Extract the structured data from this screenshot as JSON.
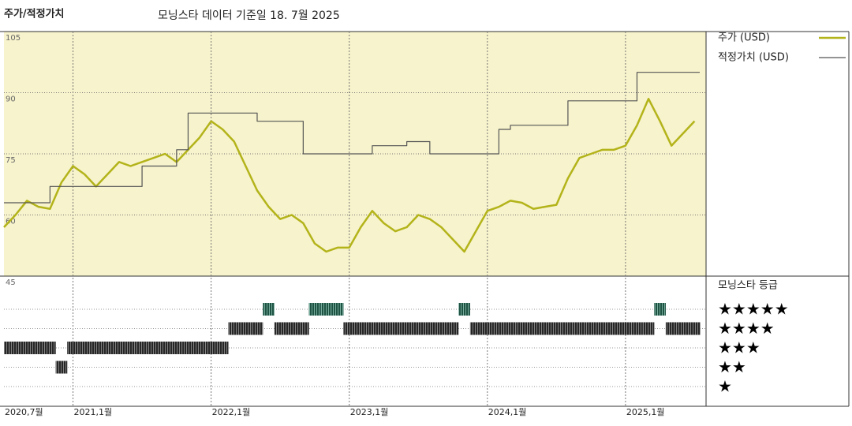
{
  "chart_data": {
    "type": "line",
    "title": "주가/적정가치",
    "subtitle": "모닝스타 데이터 기준일 18. 7월 2025",
    "x": [
      "2020-07",
      "2020-08",
      "2020-09",
      "2020-10",
      "2020-11",
      "2020-12",
      "2021-01",
      "2021-02",
      "2021-03",
      "2021-04",
      "2021-05",
      "2021-06",
      "2021-07",
      "2021-08",
      "2021-09",
      "2021-10",
      "2021-11",
      "2021-12",
      "2022-01",
      "2022-02",
      "2022-03",
      "2022-04",
      "2022-05",
      "2022-06",
      "2022-07",
      "2022-08",
      "2022-09",
      "2022-10",
      "2022-11",
      "2022-12",
      "2023-01",
      "2023-02",
      "2023-03",
      "2023-04",
      "2023-05",
      "2023-06",
      "2023-07",
      "2023-08",
      "2023-09",
      "2023-10",
      "2023-11",
      "2023-12",
      "2024-01",
      "2024-02",
      "2024-03",
      "2024-04",
      "2024-05",
      "2024-06",
      "2024-07",
      "2024-08",
      "2024-09",
      "2024-10",
      "2024-11",
      "2024-12",
      "2025-01",
      "2025-02",
      "2025-03",
      "2025-04",
      "2025-05",
      "2025-06",
      "2025-07"
    ],
    "xlim": [
      "2020-07",
      "2025-08"
    ],
    "xticks": [
      {
        "value": "2020-07",
        "label": "2020,7월"
      },
      {
        "value": "2021-01",
        "label": "2021,1월"
      },
      {
        "value": "2022-01",
        "label": "2022,1월"
      },
      {
        "value": "2023-01",
        "label": "2023,1월"
      },
      {
        "value": "2024-01",
        "label": "2024,1월"
      },
      {
        "value": "2025-01",
        "label": "2025,1월"
      }
    ],
    "ylim": [
      45,
      105
    ],
    "yticks": [
      45,
      60,
      75,
      90,
      105
    ],
    "grid": true,
    "series": [
      {
        "name": "주가 (USD)",
        "color": "#b3b31a",
        "values": [
          57,
          60,
          63.5,
          62,
          61.5,
          68,
          72,
          70,
          67,
          70,
          73,
          72,
          73,
          74,
          75,
          73,
          76,
          79,
          83,
          81,
          78,
          72,
          66,
          62,
          59,
          60,
          58,
          53,
          51,
          52,
          52,
          57,
          61,
          58,
          56,
          57,
          60,
          59,
          57,
          54,
          51,
          56,
          61,
          62,
          63.5,
          63,
          61.5,
          62,
          62.5,
          69,
          74,
          75,
          76,
          76,
          77,
          82,
          88.5,
          83,
          77,
          80,
          83
        ]
      },
      {
        "name": "적정가치 (USD)",
        "color": "#555555",
        "step": true,
        "values": [
          63,
          63,
          63,
          63,
          67,
          67,
          67,
          67,
          67,
          67,
          67,
          67,
          72,
          72,
          72,
          76,
          85,
          85,
          85,
          85,
          85,
          85,
          83,
          83,
          83,
          83,
          75,
          75,
          75,
          75,
          75,
          75,
          77,
          77,
          77,
          78,
          78,
          75,
          75,
          75,
          75,
          75,
          75,
          81,
          82,
          82,
          82,
          82,
          82,
          88,
          88,
          88,
          88,
          88,
          88,
          95,
          95,
          95,
          95,
          95,
          95
        ]
      }
    ],
    "rating": {
      "title": "모닝스타 등급",
      "levels": [
        {
          "value": 5,
          "label": "★★★★★"
        },
        {
          "value": 4,
          "label": "★★★★"
        },
        {
          "value": 3,
          "label": "★★★"
        },
        {
          "value": 2,
          "label": "★★"
        },
        {
          "value": 1,
          "label": "★"
        }
      ],
      "color": "#3a3a3a",
      "top_color": "#2e8068",
      "values": [
        3,
        3,
        3,
        3,
        3,
        2,
        3,
        3,
        3,
        3,
        3,
        3,
        3,
        3,
        3,
        3,
        3,
        3,
        3,
        3,
        4,
        4,
        4,
        5,
        4,
        4,
        4,
        5,
        5,
        5,
        4,
        4,
        4,
        4,
        4,
        4,
        4,
        4,
        4,
        4,
        5,
        4,
        4,
        4,
        4,
        4,
        4,
        4,
        4,
        4,
        4,
        4,
        4,
        4,
        4,
        4,
        4,
        5,
        4,
        4,
        4
      ]
    }
  }
}
